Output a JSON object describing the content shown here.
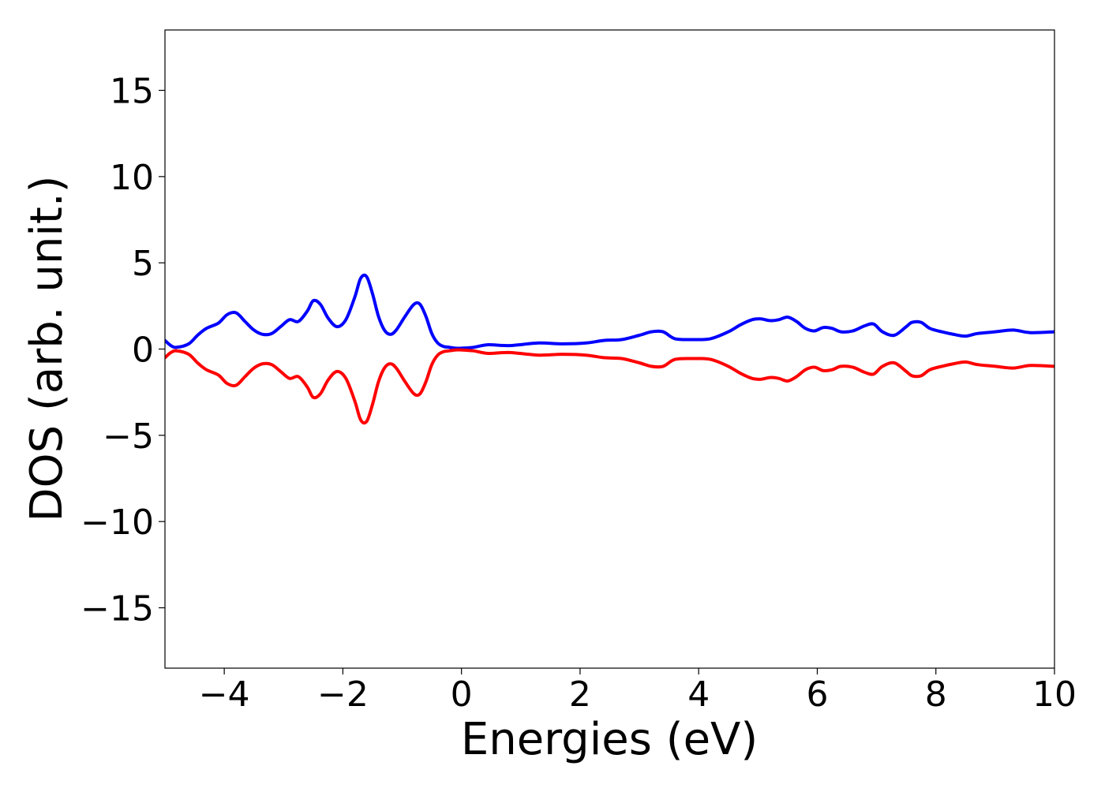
{
  "chart_data": {
    "type": "line",
    "title": "",
    "xlabel": "Energies (eV)",
    "ylabel": "DOS (arb. unit.)",
    "xlim": [
      -5,
      10
    ],
    "ylim": [
      -18.5,
      18.5
    ],
    "xticks": [
      -4,
      -2,
      0,
      2,
      4,
      6,
      8,
      10
    ],
    "xtick_labels": [
      "−4",
      "−2",
      "0",
      "2",
      "4",
      "6",
      "8",
      "10"
    ],
    "yticks": [
      -15,
      -10,
      -5,
      0,
      5,
      10,
      15
    ],
    "ytick_labels": [
      "−15",
      "−10",
      "−5",
      "0",
      "5",
      "10",
      "15"
    ],
    "grid": false,
    "legend": "none",
    "series": [
      {
        "color": "#0000ff",
        "x": [
          -5.0,
          -4.9,
          -4.8,
          -4.6,
          -4.45,
          -4.3,
          -4.1,
          -3.95,
          -3.8,
          -3.65,
          -3.5,
          -3.35,
          -3.2,
          -3.05,
          -2.9,
          -2.75,
          -2.6,
          -2.5,
          -2.38,
          -2.25,
          -2.1,
          -1.95,
          -1.8,
          -1.7,
          -1.6,
          -1.5,
          -1.4,
          -1.3,
          -1.2,
          -1.1,
          -0.95,
          -0.8,
          -0.7,
          -0.6,
          -0.5,
          -0.4,
          -0.3,
          -0.2,
          -0.1,
          0.0,
          0.2,
          0.45,
          0.8,
          1.3,
          1.7,
          2.1,
          2.4,
          2.7,
          3.0,
          3.2,
          3.4,
          3.6,
          3.9,
          4.2,
          4.5,
          4.7,
          4.9,
          5.05,
          5.2,
          5.35,
          5.5,
          5.65,
          5.8,
          5.95,
          6.1,
          6.25,
          6.4,
          6.6,
          6.8,
          6.95,
          7.1,
          7.3,
          7.5,
          7.6,
          7.75,
          7.9,
          8.1,
          8.3,
          8.5,
          8.7,
          9.0,
          9.3,
          9.6,
          10.0
        ],
        "y": [
          0.5,
          0.2,
          0.1,
          0.3,
          0.8,
          1.2,
          1.5,
          2.0,
          2.1,
          1.6,
          1.1,
          0.85,
          0.9,
          1.3,
          1.7,
          1.6,
          2.2,
          2.8,
          2.6,
          1.8,
          1.3,
          1.7,
          3.0,
          4.1,
          4.2,
          3.2,
          1.9,
          1.1,
          0.85,
          1.1,
          1.9,
          2.6,
          2.6,
          1.9,
          0.9,
          0.35,
          0.15,
          0.1,
          0.05,
          0.05,
          0.1,
          0.25,
          0.2,
          0.35,
          0.3,
          0.35,
          0.5,
          0.55,
          0.8,
          1.0,
          1.0,
          0.6,
          0.55,
          0.6,
          1.0,
          1.4,
          1.7,
          1.75,
          1.65,
          1.7,
          1.85,
          1.6,
          1.2,
          1.05,
          1.25,
          1.2,
          1.0,
          1.05,
          1.35,
          1.45,
          1.0,
          0.8,
          1.3,
          1.55,
          1.55,
          1.2,
          1.0,
          0.85,
          0.75,
          0.9,
          1.0,
          1.1,
          0.95,
          1.0
        ]
      },
      {
        "color": "#ff0000",
        "x": [
          -5.0,
          -4.9,
          -4.8,
          -4.6,
          -4.45,
          -4.3,
          -4.1,
          -3.95,
          -3.8,
          -3.65,
          -3.5,
          -3.35,
          -3.2,
          -3.05,
          -2.9,
          -2.75,
          -2.6,
          -2.5,
          -2.38,
          -2.25,
          -2.1,
          -1.95,
          -1.8,
          -1.7,
          -1.6,
          -1.5,
          -1.4,
          -1.3,
          -1.2,
          -1.1,
          -0.95,
          -0.8,
          -0.7,
          -0.6,
          -0.5,
          -0.4,
          -0.3,
          -0.2,
          -0.1,
          0.0,
          0.2,
          0.45,
          0.8,
          1.3,
          1.7,
          2.1,
          2.4,
          2.7,
          3.0,
          3.2,
          3.4,
          3.6,
          3.9,
          4.2,
          4.5,
          4.7,
          4.9,
          5.05,
          5.2,
          5.35,
          5.5,
          5.65,
          5.8,
          5.95,
          6.1,
          6.25,
          6.4,
          6.6,
          6.8,
          6.95,
          7.1,
          7.3,
          7.5,
          7.6,
          7.75,
          7.9,
          8.1,
          8.3,
          8.5,
          8.7,
          9.0,
          9.3,
          9.6,
          10.0
        ],
        "y": [
          -0.5,
          -0.2,
          -0.1,
          -0.3,
          -0.8,
          -1.2,
          -1.5,
          -2.0,
          -2.1,
          -1.6,
          -1.1,
          -0.85,
          -0.9,
          -1.3,
          -1.7,
          -1.6,
          -2.2,
          -2.8,
          -2.6,
          -1.8,
          -1.3,
          -1.7,
          -3.0,
          -4.1,
          -4.2,
          -3.2,
          -1.9,
          -1.1,
          -0.85,
          -1.1,
          -1.9,
          -2.6,
          -2.6,
          -1.9,
          -0.9,
          -0.35,
          -0.15,
          -0.1,
          -0.05,
          -0.05,
          -0.1,
          -0.25,
          -0.2,
          -0.35,
          -0.3,
          -0.35,
          -0.5,
          -0.55,
          -0.8,
          -1.0,
          -1.0,
          -0.6,
          -0.55,
          -0.6,
          -1.0,
          -1.4,
          -1.7,
          -1.75,
          -1.65,
          -1.7,
          -1.85,
          -1.6,
          -1.2,
          -1.05,
          -1.25,
          -1.2,
          -1.0,
          -1.05,
          -1.35,
          -1.45,
          -1.0,
          -0.8,
          -1.3,
          -1.55,
          -1.55,
          -1.2,
          -1.0,
          -0.85,
          -0.75,
          -0.9,
          -1.0,
          -1.1,
          -0.95,
          -1.0
        ]
      }
    ]
  }
}
